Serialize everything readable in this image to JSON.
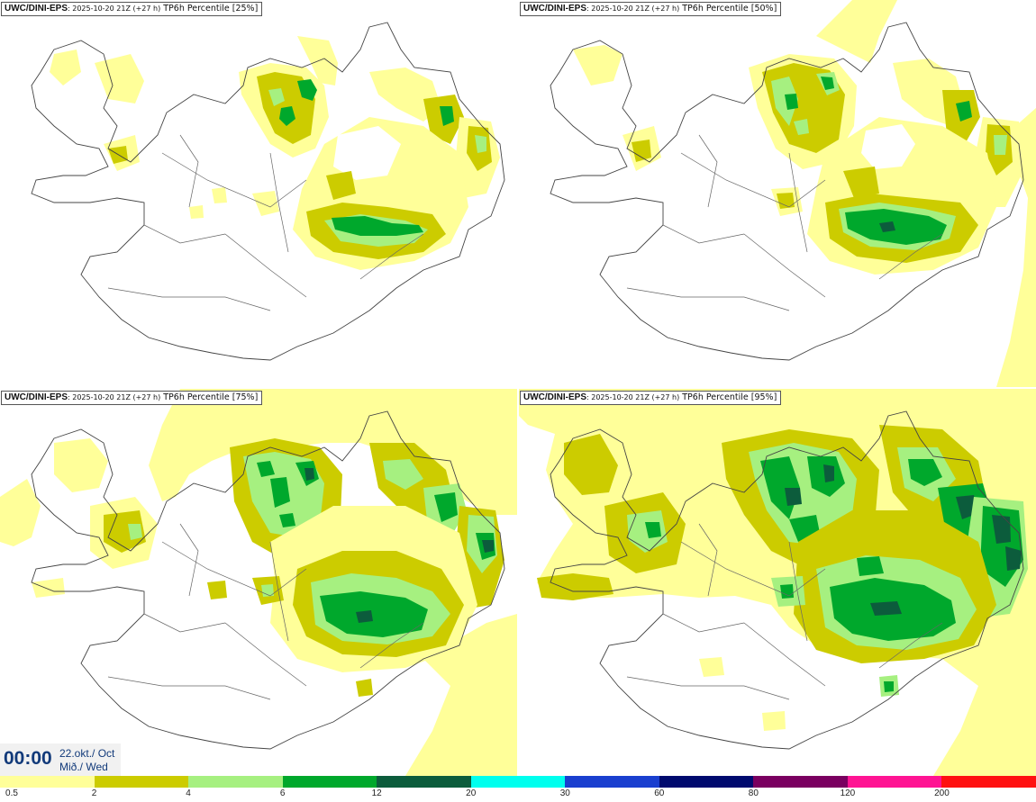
{
  "panels": [
    {
      "model": "UWC/DINI-EPS",
      "run": ": 2025-10-20 21Z (+27 h)",
      "title": " TP6h Percentile [25%]"
    },
    {
      "model": "UWC/DINI-EPS",
      "run": ": 2025-10-20 21Z (+27 h)",
      "title": " TP6h Percentile [50%]"
    },
    {
      "model": "UWC/DINI-EPS",
      "run": ": 2025-10-20 21Z (+27 h)",
      "title": " TP6h Percentile [75%]"
    },
    {
      "model": "UWC/DINI-EPS",
      "run": ": 2025-10-20 21Z (+27 h)",
      "title": " TP6h Percentile [95%]"
    }
  ],
  "valid_time": {
    "time": "00:00",
    "date_line1": "22.okt./ Oct",
    "date_line2": "Mið./ Wed"
  },
  "legend": {
    "colors": [
      "#ffff99",
      "#cccc00",
      "#a6f080",
      "#00a82c",
      "#0c5c3c",
      "#00ffee",
      "#1a3fcf",
      "#000a6e",
      "#7a0060",
      "#ff1493",
      "#ff1111"
    ],
    "labels": [
      "0.5",
      "2",
      "4",
      "6",
      "12",
      "20",
      "30",
      "60",
      "80",
      "120",
      "200"
    ]
  }
}
